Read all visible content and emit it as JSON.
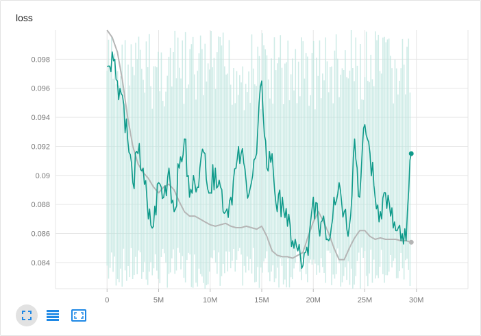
{
  "card": {
    "title": "loss"
  },
  "toolbar": {
    "buttons": [
      {
        "icon": "fit-domain-icon",
        "active": true
      },
      {
        "icon": "data-table-icon",
        "active": false
      },
      {
        "icon": "expand-icon",
        "active": false
      }
    ]
  },
  "colors": {
    "raw": "#0f9a8a",
    "raw_faint": "#bfe6e0",
    "smoothed": "#b5b5b5",
    "grid": "#e6e6e6",
    "icon": "#1e88e5"
  },
  "chart_data": {
    "type": "line",
    "title": "loss",
    "xlim": [
      -5000000,
      35000000
    ],
    "ylim": [
      0.0822,
      0.1
    ],
    "x_ticks": [
      0,
      5000000,
      10000000,
      15000000,
      20000000,
      25000000,
      30000000
    ],
    "x_tick_labels": [
      "0",
      "5M",
      "10M",
      "15M",
      "20M",
      "25M",
      "30M"
    ],
    "y_ticks": [
      0.084,
      0.086,
      0.088,
      0.09,
      0.092,
      0.094,
      0.096,
      0.098
    ],
    "y_tick_labels": [
      "0.084",
      "0.086",
      "0.088",
      "0.09",
      "0.092",
      "0.094",
      "0.096",
      "0.098"
    ],
    "grid": true,
    "series": [
      {
        "role": "raw",
        "x": [
          0,
          500000,
          1000000,
          1500000,
          2000000,
          2500000,
          3000000,
          3500000,
          4000000,
          4500000,
          5000000,
          5500000,
          6000000,
          6500000,
          7000000,
          7500000,
          8000000,
          8500000,
          9000000,
          9500000,
          10000000,
          10500000,
          11000000,
          11500000,
          12000000,
          12500000,
          13000000,
          13500000,
          14000000,
          14500000,
          15000000,
          15500000,
          16000000,
          16500000,
          17000000,
          17500000,
          18000000,
          18500000,
          19000000,
          19500000,
          20000000,
          20500000,
          21000000,
          21500000,
          22000000,
          22500000,
          23000000,
          23500000,
          24000000,
          24500000,
          25000000,
          25500000,
          26000000,
          26500000,
          27000000,
          27500000,
          28000000,
          28500000,
          29000000,
          29500000
        ],
        "y": [
          0.0975,
          0.0985,
          0.0965,
          0.0955,
          0.0925,
          0.0895,
          0.0915,
          0.0905,
          0.087,
          0.0865,
          0.0895,
          0.0885,
          0.0905,
          0.0875,
          0.0905,
          0.0925,
          0.0885,
          0.0895,
          0.0905,
          0.0915,
          0.0888,
          0.0905,
          0.0892,
          0.0875,
          0.0885,
          0.0905,
          0.0915,
          0.0895,
          0.0895,
          0.0915,
          0.0965,
          0.0905,
          0.0915,
          0.0875,
          0.0885,
          0.0865,
          0.0855,
          0.0848,
          0.0838,
          0.0845,
          0.0885,
          0.0865,
          0.0872,
          0.0855,
          0.0885,
          0.0895,
          0.0875,
          0.0865,
          0.0925,
          0.0885,
          0.0935,
          0.0915,
          0.0885,
          0.0875,
          0.0888,
          0.0872,
          0.0862,
          0.0855,
          0.0855,
          0.0915
        ]
      },
      {
        "role": "smoothed",
        "x": [
          0,
          500000,
          1000000,
          1500000,
          2000000,
          2500000,
          3000000,
          3500000,
          4000000,
          4500000,
          5000000,
          5500000,
          6000000,
          6500000,
          7000000,
          7500000,
          8000000,
          8500000,
          9000000,
          9500000,
          10000000,
          10500000,
          11000000,
          11500000,
          12000000,
          12500000,
          13000000,
          13500000,
          14000000,
          14500000,
          15000000,
          15500000,
          16000000,
          16500000,
          17000000,
          17500000,
          18000000,
          18500000,
          19000000,
          19500000,
          20000000,
          20500000,
          21000000,
          21500000,
          22000000,
          22500000,
          23000000,
          23500000,
          24000000,
          24500000,
          25000000,
          25500000,
          26000000,
          26500000,
          27000000,
          27500000,
          28000000,
          28500000,
          29000000,
          29500000
        ],
        "y": [
          0.1,
          0.0995,
          0.0985,
          0.0965,
          0.094,
          0.092,
          0.0908,
          0.0902,
          0.0898,
          0.0892,
          0.0888,
          0.0892,
          0.0894,
          0.089,
          0.0882,
          0.0875,
          0.0872,
          0.0872,
          0.087,
          0.0868,
          0.0866,
          0.0865,
          0.0866,
          0.0867,
          0.0865,
          0.0864,
          0.0864,
          0.0865,
          0.0864,
          0.0863,
          0.0865,
          0.0858,
          0.0848,
          0.0845,
          0.0844,
          0.0844,
          0.0843,
          0.0845,
          0.0847,
          0.0858,
          0.0868,
          0.0875,
          0.0868,
          0.086,
          0.085,
          0.0842,
          0.0842,
          0.085,
          0.0857,
          0.0862,
          0.0862,
          0.0858,
          0.0856,
          0.0857,
          0.0856,
          0.0856,
          0.0856,
          0.0855,
          0.0855,
          0.0854
        ]
      }
    ]
  }
}
